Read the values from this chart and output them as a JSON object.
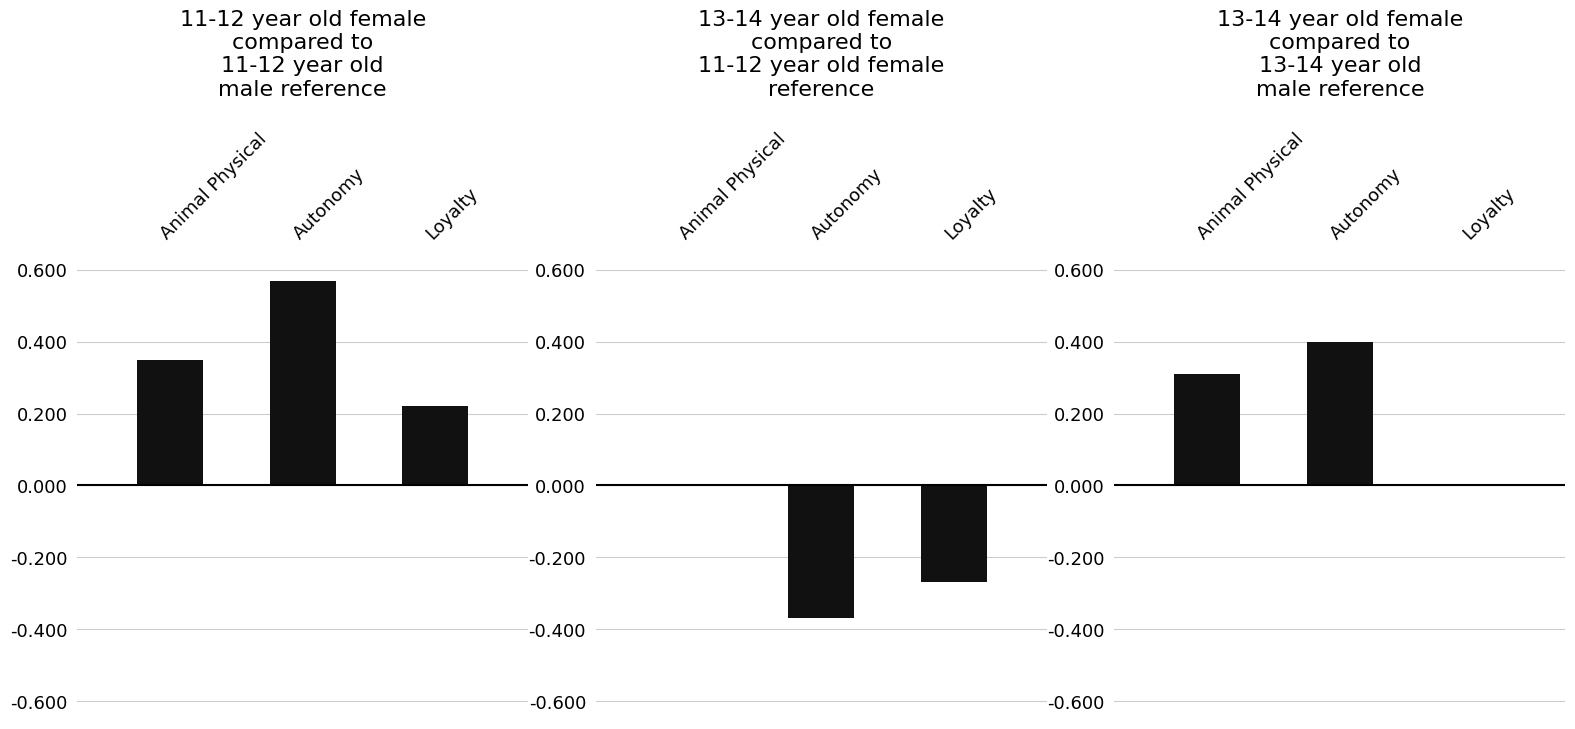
{
  "charts": [
    {
      "title": "11-12 year old female\ncompared to\n11-12 year old\nmale reference",
      "categories": [
        "Animal Physical",
        "Autonomy",
        "Loyalty"
      ],
      "values": [
        0.35,
        0.57,
        0.22
      ]
    },
    {
      "title": "13-14 year old female\ncompared to\n11-12 year old female\nreference",
      "categories": [
        "Animal Physical",
        "Autonomy",
        "Loyalty"
      ],
      "values": [
        0.0,
        -0.37,
        -0.27
      ]
    },
    {
      "title": "13-14 year old female\ncompared to\n13-14 year old\nmale reference",
      "categories": [
        "Animal Physical",
        "Autonomy",
        "Loyalty"
      ],
      "values": [
        0.31,
        0.4,
        0.0
      ]
    }
  ],
  "ylim": [
    -0.65,
    0.65
  ],
  "yticks": [
    -0.6,
    -0.4,
    -0.2,
    0.0,
    0.2,
    0.4,
    0.6
  ],
  "ytick_labels": [
    "-0.600",
    "-0.400",
    "-0.200",
    "0.000",
    "0.200",
    "0.400",
    "0.600"
  ],
  "bar_color": "#111111",
  "bar_width": 0.5,
  "title_fontsize": 16,
  "tick_label_fontsize": 13,
  "xtick_fontsize": 13,
  "background_color": "#ffffff",
  "grid_color": "#cccccc",
  "zero_line_color": "#000000"
}
